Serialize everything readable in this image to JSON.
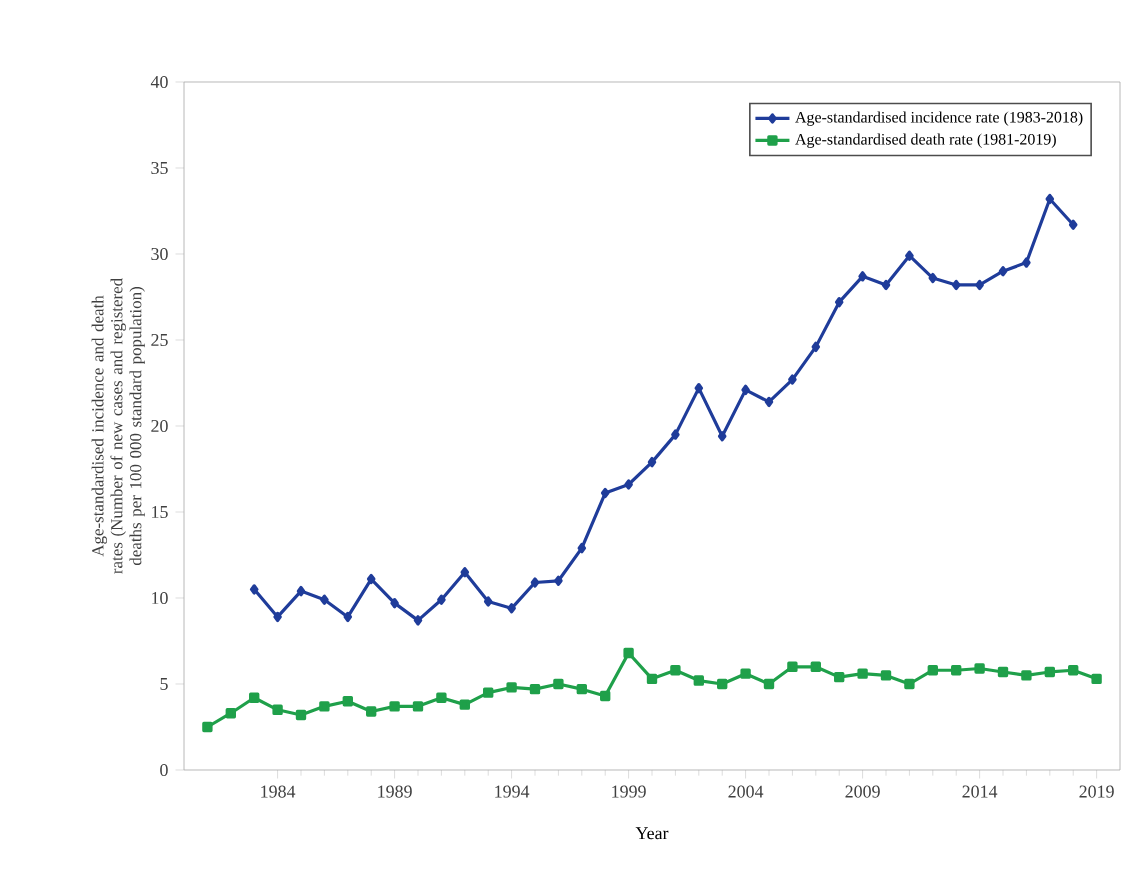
{
  "chart_data": {
    "type": "line",
    "xlabel": "Year",
    "ylabel": "Age-standardised incidence and death rates (Number of new cases and registered deaths per 100 000 standard population)",
    "xlim": [
      1980,
      2020
    ],
    "ylim": [
      0,
      40
    ],
    "yticks": [
      0,
      5,
      10,
      15,
      20,
      25,
      30,
      35,
      40
    ],
    "xticks": [
      1984,
      1989,
      1994,
      1999,
      2004,
      2009,
      2014,
      2019
    ],
    "legend": "top right",
    "grid": false,
    "line_style": "solid",
    "series": [
      {
        "name": "Age-standardised incidence rate (1983-2018)",
        "color": "#1f3c9a",
        "marker": "diamond",
        "x": [
          1983,
          1984,
          1985,
          1986,
          1987,
          1988,
          1989,
          1990,
          1991,
          1992,
          1993,
          1994,
          1995,
          1996,
          1997,
          1998,
          1999,
          2000,
          2001,
          2002,
          2003,
          2004,
          2005,
          2006,
          2007,
          2008,
          2009,
          2010,
          2011,
          2012,
          2013,
          2014,
          2015,
          2016,
          2017,
          2018
        ],
        "values": [
          10.5,
          8.9,
          10.4,
          9.9,
          8.9,
          11.1,
          9.7,
          8.7,
          9.9,
          11.5,
          9.8,
          9.4,
          10.9,
          11.0,
          12.9,
          16.1,
          16.6,
          17.9,
          19.5,
          22.2,
          19.4,
          22.1,
          21.4,
          22.7,
          24.6,
          27.2,
          28.7,
          28.2,
          29.9,
          28.6,
          28.2,
          28.2,
          29.0,
          29.5,
          33.2,
          31.7
        ]
      },
      {
        "name": "Age-standardised death rate (1981-2019)",
        "color": "#1fa04a",
        "marker": "square",
        "x": [
          1981,
          1982,
          1983,
          1984,
          1985,
          1986,
          1987,
          1988,
          1989,
          1990,
          1991,
          1992,
          1993,
          1994,
          1995,
          1996,
          1997,
          1998,
          1999,
          2000,
          2001,
          2002,
          2003,
          2004,
          2005,
          2006,
          2007,
          2008,
          2009,
          2010,
          2011,
          2012,
          2013,
          2014,
          2015,
          2016,
          2017,
          2018,
          2019
        ],
        "values": [
          2.5,
          3.3,
          4.2,
          3.5,
          3.2,
          3.7,
          4.0,
          3.4,
          3.7,
          3.7,
          4.2,
          3.8,
          4.5,
          4.8,
          4.7,
          5.0,
          4.7,
          4.3,
          6.8,
          5.3,
          5.8,
          5.2,
          5.0,
          5.6,
          5.0,
          6.0,
          6.0,
          5.4,
          5.6,
          5.5,
          5.0,
          5.8,
          5.8,
          5.9,
          5.7,
          5.5,
          5.7,
          5.8,
          5.3
        ]
      }
    ]
  }
}
